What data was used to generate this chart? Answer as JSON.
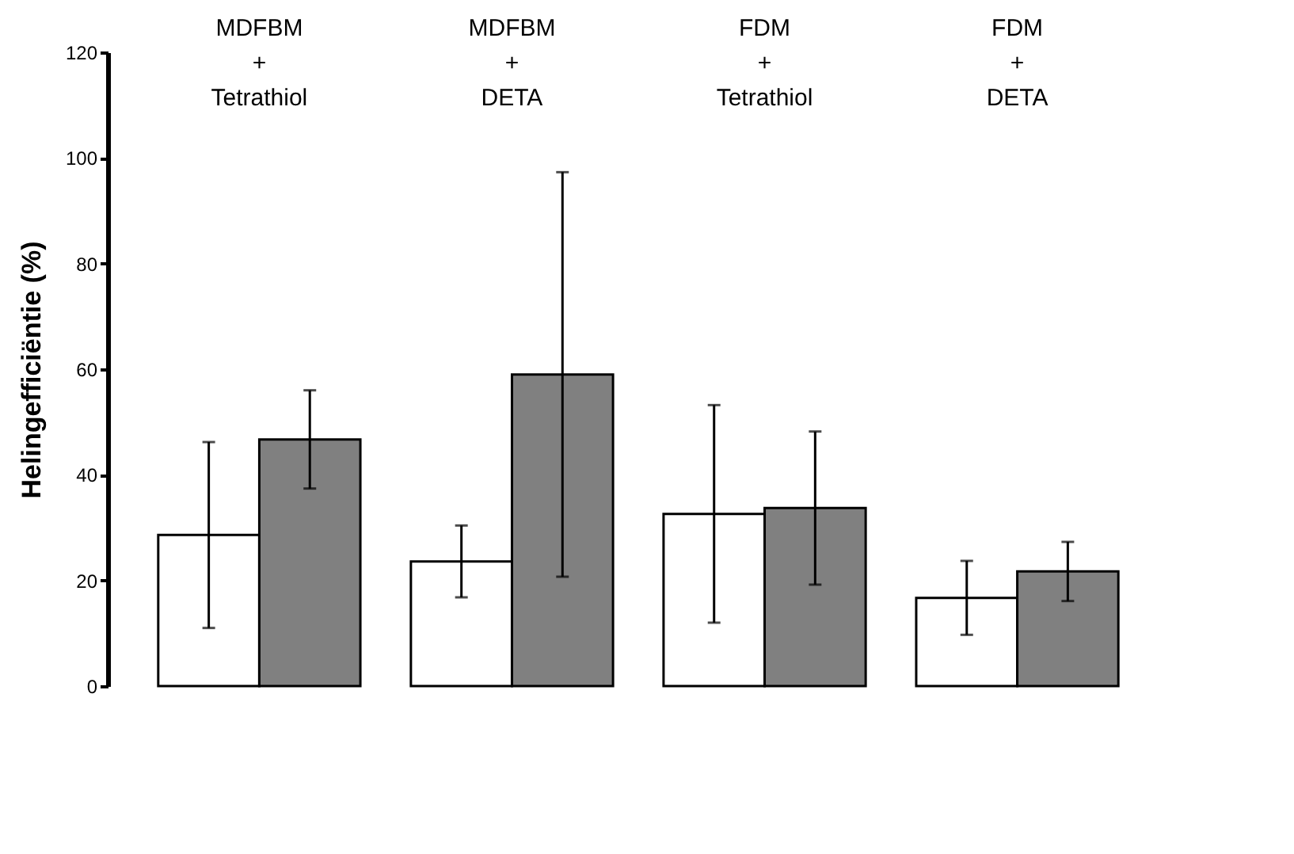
{
  "chart_data": {
    "type": "bar",
    "ylabel": "Helingefficiëntie (%)",
    "categories": [
      "MDFBM\n+\nTetrathiol",
      "MDFBM\n+\nDETA",
      "FDM\n+\nTetrathiol",
      "FDM\n+\nDETA"
    ],
    "series": [
      {
        "color": "#ffffff",
        "values": [
          28.6,
          23.6,
          32.6,
          16.7
        ],
        "errors": [
          17.6,
          6.8,
          20.6,
          7.0
        ]
      },
      {
        "color": "#808080",
        "values": [
          46.7,
          59.0,
          33.7,
          21.7
        ],
        "errors": [
          9.3,
          38.3,
          14.5,
          5.6
        ]
      }
    ],
    "ylim": [
      0,
      120
    ],
    "yticks": [
      0,
      20,
      40,
      60,
      80,
      100,
      120
    ],
    "grid": false,
    "legend": false
  }
}
